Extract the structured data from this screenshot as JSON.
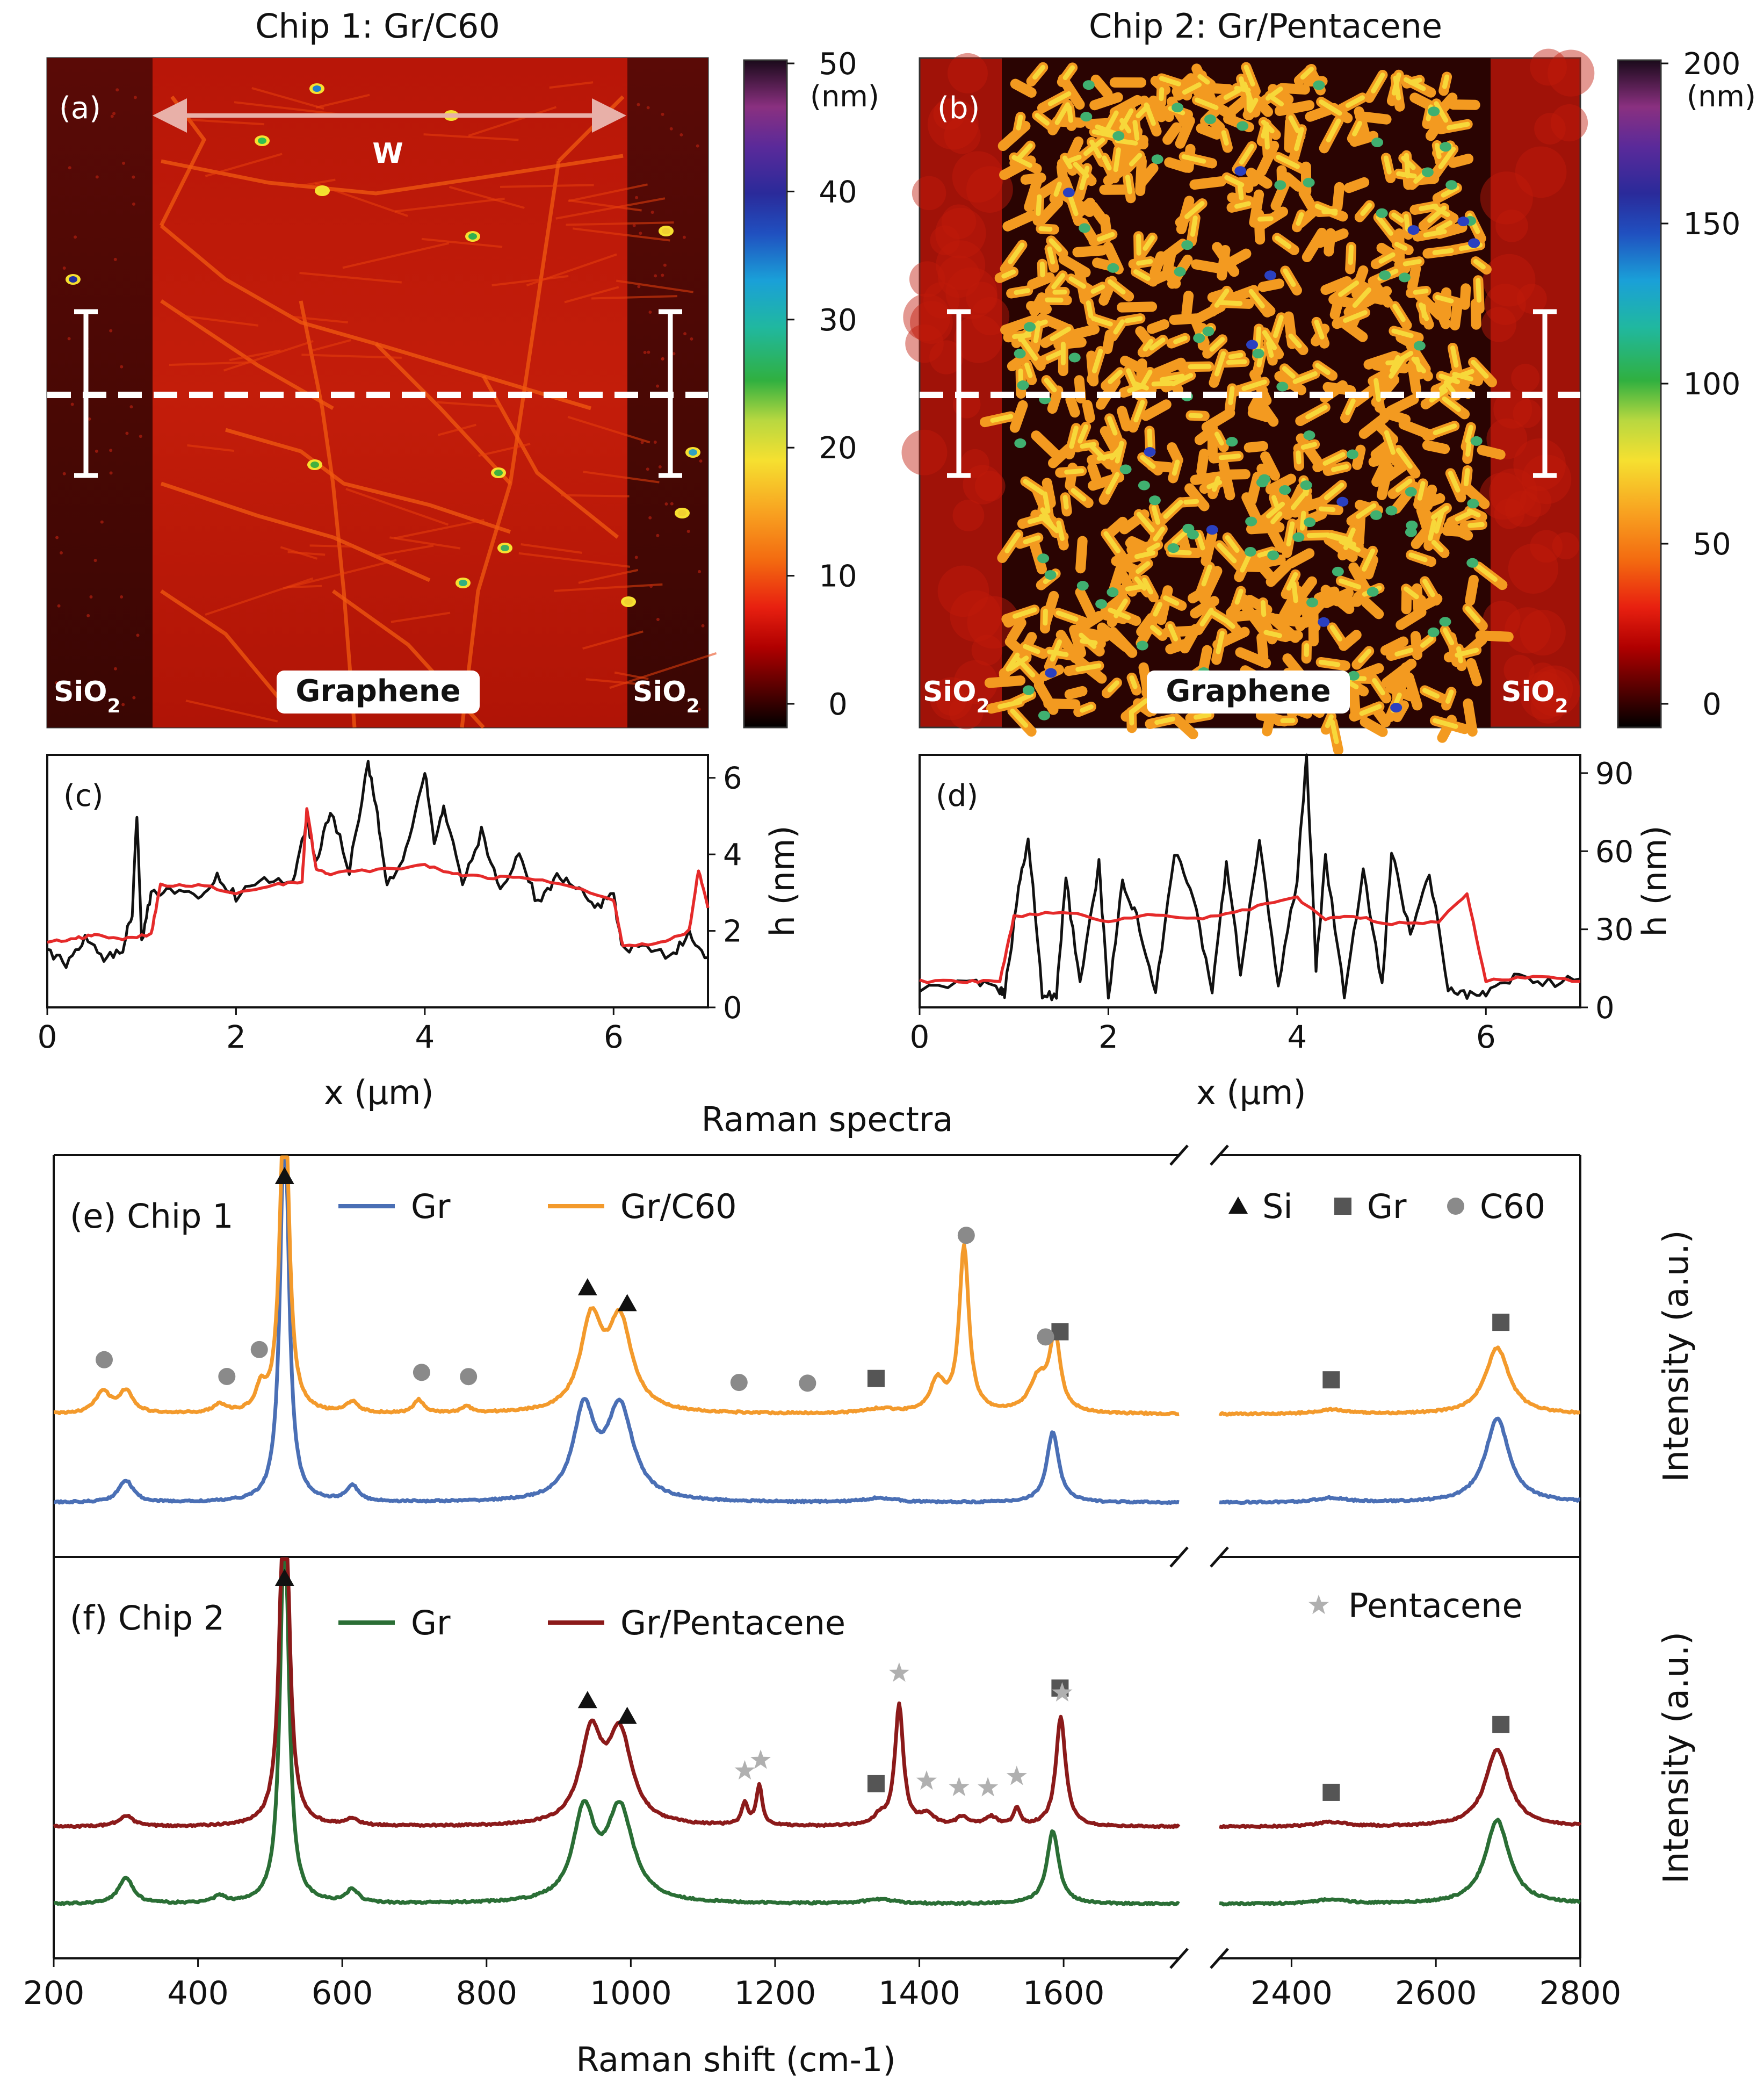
{
  "colors": {
    "blue": "#4a6fb5",
    "orange": "#f39a2c",
    "green": "#2a6e35",
    "darkred": "#8b1a1a",
    "red": "#e52a2a",
    "black": "#111111",
    "marker_gray": "#555555",
    "marker_light": "#8a8a8a",
    "star_gray": "#b0b0b0"
  },
  "afm": {
    "a": {
      "title": "Chip 1: Gr/C60",
      "panel_label": "(a)",
      "width_label": "W",
      "left_label": "SiO2",
      "center_label": "Graphene",
      "right_label": "SiO2",
      "colorbar_unit": "(nm)",
      "colorbar_ticks": [
        "50",
        "40",
        "30",
        "20",
        "10",
        "0"
      ]
    },
    "b": {
      "title": "Chip 2: Gr/Pentacene",
      "panel_label": "(b)",
      "left_label": "SiO2",
      "center_label": "Graphene",
      "right_label": "SiO2",
      "colorbar_unit": "(nm)",
      "colorbar_ticks": [
        "200",
        "150",
        "100",
        "50",
        "0"
      ]
    }
  },
  "chart_data": [
    {
      "id": "c",
      "type": "line",
      "panel_label": "(c)",
      "xlabel": "x (µm)",
      "ylabel": "h (nm)",
      "xlim": [
        0,
        7
      ],
      "ylim": [
        0,
        6.6
      ],
      "xticks": [
        "0",
        "2",
        "4",
        "6"
      ],
      "yticks": [
        "0",
        "2",
        "4",
        "6"
      ],
      "series": [
        {
          "name": "black profile",
          "color": "black",
          "x": [
            0,
            0.2,
            0.4,
            0.6,
            0.8,
            0.9,
            0.95,
            1.0,
            1.1,
            1.3,
            1.6,
            1.8,
            2.0,
            2.3,
            2.6,
            2.75,
            2.85,
            3.0,
            3.2,
            3.4,
            3.5,
            3.6,
            3.8,
            4.0,
            4.1,
            4.2,
            4.4,
            4.6,
            4.8,
            5.0,
            5.2,
            5.4,
            5.6,
            5.8,
            6.0,
            6.1,
            6.3,
            6.6,
            6.8,
            7.0
          ],
          "y": [
            1.5,
            1.1,
            1.8,
            1.3,
            1.5,
            2.5,
            5.1,
            1.7,
            3.0,
            3.1,
            2.8,
            3.4,
            2.9,
            3.4,
            3.2,
            4.9,
            3.8,
            5.2,
            3.6,
            6.4,
            5.0,
            3.2,
            4.1,
            6.2,
            4.3,
            5.2,
            3.2,
            4.6,
            3.0,
            4.0,
            2.7,
            3.4,
            3.2,
            2.6,
            2.9,
            1.5,
            1.7,
            1.3,
            1.9,
            1.3
          ]
        },
        {
          "name": "red average",
          "color": "red",
          "x": [
            0,
            0.3,
            0.5,
            0.8,
            1.1,
            1.2,
            1.6,
            2.0,
            2.4,
            2.7,
            2.75,
            2.85,
            3.0,
            3.5,
            4.0,
            4.3,
            4.6,
            5.0,
            5.5,
            6.0,
            6.1,
            6.5,
            6.8,
            6.9,
            7.0
          ],
          "y": [
            1.7,
            1.8,
            1.9,
            1.8,
            1.9,
            3.2,
            3.2,
            3.0,
            3.2,
            3.3,
            5.2,
            3.6,
            3.5,
            3.6,
            3.7,
            3.5,
            3.4,
            3.4,
            3.2,
            2.8,
            1.6,
            1.7,
            2.0,
            3.6,
            2.6
          ]
        }
      ]
    },
    {
      "id": "d",
      "type": "line",
      "panel_label": "(d)",
      "xlabel": "x (µm)",
      "ylabel": "h (nm)",
      "xlim": [
        0,
        7
      ],
      "ylim": [
        0,
        97
      ],
      "xticks": [
        "0",
        "2",
        "4",
        "6"
      ],
      "yticks": [
        "0",
        "30",
        "60",
        "90"
      ],
      "series": [
        {
          "name": "black profile",
          "color": "black",
          "x": [
            0,
            0.6,
            0.85,
            0.9,
            1.05,
            1.15,
            1.3,
            1.45,
            1.55,
            1.7,
            1.9,
            2.0,
            2.15,
            2.3,
            2.5,
            2.7,
            2.9,
            3.1,
            3.25,
            3.4,
            3.6,
            3.8,
            4.0,
            4.1,
            4.2,
            4.3,
            4.5,
            4.7,
            4.9,
            5.0,
            5.2,
            5.4,
            5.6,
            5.8,
            6.0,
            6.3,
            6.6,
            7.0
          ],
          "y": [
            8,
            9,
            7,
            5,
            45,
            66,
            5,
            4,
            50,
            8,
            55,
            4,
            48,
            35,
            6,
            60,
            42,
            7,
            55,
            14,
            64,
            8,
            50,
            97,
            15,
            57,
            5,
            52,
            8,
            60,
            28,
            52,
            8,
            4,
            6,
            12,
            9,
            11
          ]
        },
        {
          "name": "red average",
          "color": "red",
          "x": [
            0,
            0.5,
            0.85,
            1.0,
            1.5,
            2.0,
            2.5,
            3.0,
            3.5,
            4.0,
            4.3,
            4.6,
            5.0,
            5.5,
            5.8,
            6.0,
            6.5,
            7.0
          ],
          "y": [
            10,
            10,
            10,
            35,
            37,
            33,
            36,
            34,
            38,
            42,
            34,
            35,
            32,
            33,
            44,
            10,
            12,
            10
          ]
        }
      ]
    },
    {
      "id": "e",
      "type": "line",
      "title": "Raman spectra",
      "panel_label": "(e) Chip 1",
      "xlabel": "Raman shift (cm-1)",
      "ylabel": "Intensity (a.u.)",
      "xlim": [
        200,
        2800
      ],
      "axis_break": [
        1760,
        2300
      ],
      "xticks": [
        "200",
        "400",
        "600",
        "800",
        "1000",
        "1200",
        "1400",
        "1600",
        "2400",
        "2600",
        "2800"
      ],
      "legend": [
        "Gr",
        "Gr/C60"
      ],
      "marker_legend": [
        "Si",
        "Gr",
        "C60"
      ],
      "series": [
        {
          "name": "Gr",
          "color": "blue",
          "offset": 0.1,
          "peaks": [
            [
              300,
              0.1,
              12
            ],
            [
              520,
              1.8,
              7
            ],
            [
              614,
              0.07,
              10
            ],
            [
              935,
              0.4,
              18
            ],
            [
              985,
              0.42,
              22
            ],
            [
              1345,
              0.02,
              25
            ],
            [
              1585,
              0.32,
              10
            ],
            [
              2455,
              0.02,
              25
            ],
            [
              2685,
              0.38,
              20
            ]
          ]
        },
        {
          "name": "Gr/C60",
          "color": "orange",
          "offset": 0.5,
          "peaks": [
            [
              268,
              0.1,
              12
            ],
            [
              300,
              0.1,
              12
            ],
            [
              430,
              0.04,
              10
            ],
            [
              487,
              0.1,
              8
            ],
            [
              520,
              1.6,
              7
            ],
            [
              614,
              0.05,
              10
            ],
            [
              706,
              0.06,
              8
            ],
            [
              772,
              0.03,
              8
            ],
            [
              945,
              0.4,
              18
            ],
            [
              985,
              0.4,
              20
            ],
            [
              1345,
              0.02,
              25
            ],
            [
              1425,
              0.14,
              12
            ],
            [
              1462,
              0.75,
              8
            ],
            [
              1565,
              0.15,
              15
            ],
            [
              1588,
              0.33,
              9
            ],
            [
              2455,
              0.02,
              25
            ],
            [
              2685,
              0.3,
              20
            ]
          ]
        }
      ],
      "markers": [
        {
          "shape": "triangle",
          "x": 520,
          "label": "Si"
        },
        {
          "shape": "triangle",
          "x": 940,
          "label": "Si"
        },
        {
          "shape": "triangle",
          "x": 995,
          "label": "Si"
        },
        {
          "shape": "square",
          "x": 1340,
          "label": "Gr"
        },
        {
          "shape": "square",
          "x": 1595,
          "label": "Gr"
        },
        {
          "shape": "square",
          "x": 2455,
          "label": "Gr"
        },
        {
          "shape": "square",
          "x": 2690,
          "label": "Gr"
        },
        {
          "shape": "circle",
          "x": 270,
          "label": "C60"
        },
        {
          "shape": "circle",
          "x": 440,
          "label": "C60"
        },
        {
          "shape": "circle",
          "x": 485,
          "label": "C60"
        },
        {
          "shape": "circle",
          "x": 710,
          "label": "C60"
        },
        {
          "shape": "circle",
          "x": 775,
          "label": "C60"
        },
        {
          "shape": "circle",
          "x": 1150,
          "label": "C60"
        },
        {
          "shape": "circle",
          "x": 1245,
          "label": "C60"
        },
        {
          "shape": "circle",
          "x": 1465,
          "label": "C60"
        },
        {
          "shape": "circle",
          "x": 1575,
          "label": "C60"
        }
      ]
    },
    {
      "id": "f",
      "type": "line",
      "panel_label": "(f) Chip 2",
      "xlabel": "Raman shift (cm-1)",
      "ylabel": "Intensity (a.u.)",
      "xlim": [
        200,
        2800
      ],
      "axis_break": [
        1760,
        2300
      ],
      "legend": [
        "Gr",
        "Gr/Pentacene"
      ],
      "marker_legend": [
        "Pentacene"
      ],
      "series": [
        {
          "name": "Gr",
          "color": "green",
          "offset": 0.1,
          "peaks": [
            [
              300,
              0.12,
              12
            ],
            [
              430,
              0.03,
              10
            ],
            [
              520,
              1.8,
              7
            ],
            [
              614,
              0.06,
              10
            ],
            [
              935,
              0.4,
              18
            ],
            [
              985,
              0.42,
              22
            ],
            [
              1345,
              0.02,
              25
            ],
            [
              1585,
              0.33,
              10
            ],
            [
              2455,
              0.02,
              25
            ],
            [
              2685,
              0.38,
              20
            ]
          ]
        },
        {
          "name": "Gr/Pentacene",
          "color": "darkred",
          "offset": 0.45,
          "peaks": [
            [
              300,
              0.05,
              12
            ],
            [
              520,
              1.8,
              7
            ],
            [
              614,
              0.03,
              10
            ],
            [
              945,
              0.4,
              18
            ],
            [
              985,
              0.4,
              20
            ],
            [
              1158,
              0.1,
              5
            ],
            [
              1178,
              0.18,
              5
            ],
            [
              1345,
              0.04,
              10
            ],
            [
              1372,
              0.55,
              7
            ],
            [
              1410,
              0.05,
              12
            ],
            [
              1460,
              0.04,
              10
            ],
            [
              1500,
              0.04,
              10
            ],
            [
              1535,
              0.08,
              5
            ],
            [
              1596,
              0.5,
              8
            ],
            [
              2455,
              0.02,
              25
            ],
            [
              2685,
              0.35,
              20
            ]
          ]
        }
      ],
      "markers": [
        {
          "shape": "triangle",
          "x": 520,
          "label": "Si"
        },
        {
          "shape": "triangle",
          "x": 940,
          "label": "Si"
        },
        {
          "shape": "triangle",
          "x": 995,
          "label": "Si"
        },
        {
          "shape": "square",
          "x": 1340,
          "label": "Gr"
        },
        {
          "shape": "square",
          "x": 1595,
          "label": "Gr"
        },
        {
          "shape": "square",
          "x": 2455,
          "label": "Gr"
        },
        {
          "shape": "square",
          "x": 2690,
          "label": "Gr"
        },
        {
          "shape": "star",
          "x": 1158,
          "label": "Pentacene"
        },
        {
          "shape": "star",
          "x": 1180,
          "label": "Pentacene"
        },
        {
          "shape": "star",
          "x": 1372,
          "label": "Pentacene"
        },
        {
          "shape": "star",
          "x": 1410,
          "label": "Pentacene"
        },
        {
          "shape": "star",
          "x": 1455,
          "label": "Pentacene"
        },
        {
          "shape": "star",
          "x": 1495,
          "label": "Pentacene"
        },
        {
          "shape": "star",
          "x": 1535,
          "label": "Pentacene"
        },
        {
          "shape": "star",
          "x": 1598,
          "label": "Pentacene"
        }
      ]
    }
  ]
}
